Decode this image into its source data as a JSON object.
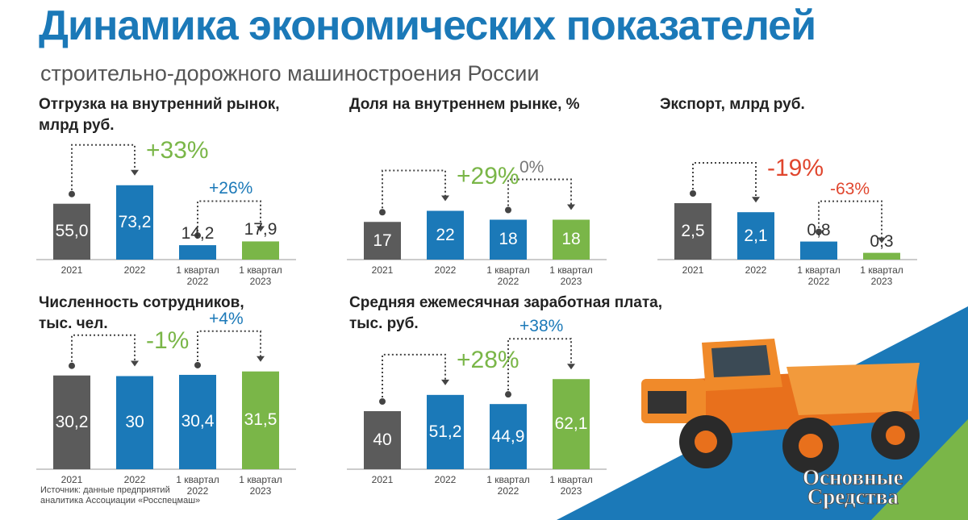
{
  "page": {
    "title": "Динамика экономических показателей",
    "subtitle": "строительно-дорожного машиностроения России",
    "source": "Источник: данные предприятий\nаналитика Ассоциации «Росспецмаш»",
    "logo": "Основные\nСредства"
  },
  "chart_data": [
    {
      "type": "bar",
      "title": "Отгрузка на внутренний рынок,\nмлрд руб.",
      "categories": [
        "2021",
        "2022",
        "1 квартал 2022",
        "1 квартал 2023"
      ],
      "values": [
        55.0,
        73.2,
        14.2,
        17.9
      ],
      "value_labels": [
        "55,0",
        "73,2",
        "14,2",
        "17,9"
      ],
      "colors": [
        "#5b5b5b",
        "#1b79b8",
        "#1b79b8",
        "#7ab648"
      ],
      "annotations": [
        {
          "text": "+33%",
          "color": "#7ab648"
        },
        {
          "text": "+26%",
          "color": "#1b79b8"
        }
      ]
    },
    {
      "type": "bar",
      "title": "Доля на внутреннем рынке, %",
      "categories": [
        "2021",
        "2022",
        "1 квартал 2022",
        "1 квартал 2023"
      ],
      "values": [
        17,
        22,
        18,
        18
      ],
      "colors": [
        "#5b5b5b",
        "#1b79b8",
        "#1b79b8",
        "#7ab648"
      ],
      "annotations": [
        {
          "text": "+29%",
          "color": "#7ab648"
        },
        {
          "text": "0%",
          "color": "#777777"
        }
      ]
    },
    {
      "type": "bar",
      "title": "Экспорт, млрд руб.",
      "categories": [
        "2021",
        "2022",
        "1 квартал 2022",
        "1 квартал 2023"
      ],
      "values": [
        2.5,
        2.1,
        0.8,
        0.3
      ],
      "value_labels": [
        "2,5",
        "2,1",
        "0,8",
        "0,3"
      ],
      "colors": [
        "#5b5b5b",
        "#1b79b8",
        "#1b79b8",
        "#7ab648"
      ],
      "annotations": [
        {
          "text": "-19%",
          "color": "#e0462e"
        },
        {
          "text": "-63%",
          "color": "#e0462e"
        }
      ]
    },
    {
      "type": "bar",
      "title": "Численность сотрудников,\nтыс. чел.",
      "categories": [
        "2021",
        "2022",
        "1 квартал 2022",
        "1 квартал 2023"
      ],
      "values": [
        30.2,
        30,
        30.4,
        31.5
      ],
      "value_labels": [
        "30,2",
        "30",
        "30,4",
        "31,5"
      ],
      "colors": [
        "#5b5b5b",
        "#1b79b8",
        "#1b79b8",
        "#7ab648"
      ],
      "annotations": [
        {
          "text": "-1%",
          "color": "#7ab648"
        },
        {
          "text": "+4%",
          "color": "#1b79b8"
        }
      ]
    },
    {
      "type": "bar",
      "title": "Средняя ежемесячная заработная плата,\nтыс. руб.",
      "categories": [
        "2021",
        "2022",
        "1 квартал 2022",
        "1 квартал 2023"
      ],
      "values": [
        40,
        51.2,
        44.9,
        62.1
      ],
      "value_labels": [
        "40",
        "51,2",
        "44,9",
        "62,1"
      ],
      "colors": [
        "#5b5b5b",
        "#1b79b8",
        "#1b79b8",
        "#7ab648"
      ],
      "annotations": [
        {
          "text": "+28%",
          "color": "#7ab648"
        },
        {
          "text": "+38%",
          "color": "#1b79b8"
        }
      ]
    }
  ]
}
